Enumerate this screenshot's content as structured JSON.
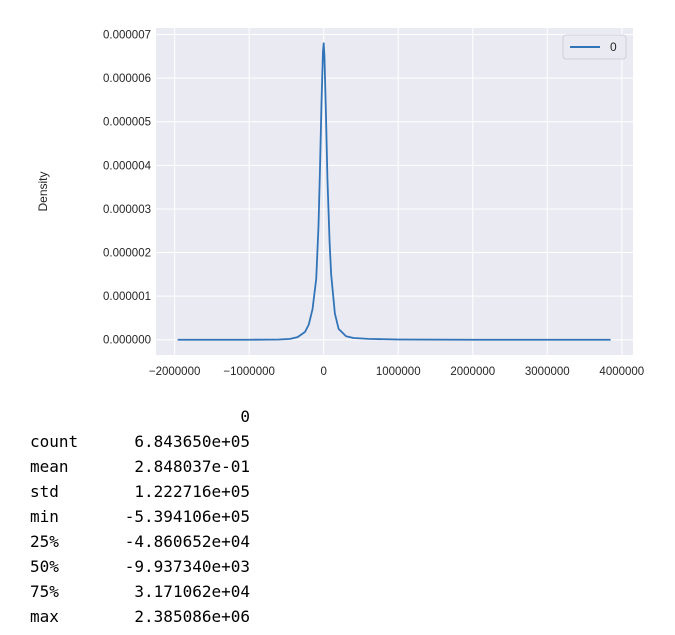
{
  "chart_data": {
    "type": "line",
    "title": "",
    "xlabel": "",
    "ylabel": "Density",
    "xlim": [
      -2250000,
      4150000
    ],
    "ylim": [
      -3.5e-07,
      7.15e-06
    ],
    "x_ticks": [
      -2000000,
      -1000000,
      0,
      1000000,
      2000000,
      3000000,
      4000000
    ],
    "x_tick_labels": [
      "−2000000",
      "−1000000",
      "0",
      "1000000",
      "2000000",
      "3000000",
      "4000000"
    ],
    "y_ticks": [
      0,
      1e-06,
      2e-06,
      3e-06,
      4e-06,
      5e-06,
      6e-06,
      7e-06
    ],
    "y_tick_labels": [
      "0.000000",
      "0.000001",
      "0.000002",
      "0.000003",
      "0.000004",
      "0.000005",
      "0.000006",
      "0.000007"
    ],
    "grid": true,
    "legend_position": "top-right",
    "series": [
      {
        "name": "0",
        "color": "#3274b8",
        "x": [
          -1960000,
          -1000000,
          -600000,
          -450000,
          -350000,
          -250000,
          -200000,
          -150000,
          -100000,
          -70000,
          -50000,
          -30000,
          -10000,
          0,
          10000,
          30000,
          50000,
          80000,
          100000,
          150000,
          200000,
          300000,
          400000,
          600000,
          1000000,
          2000000,
          3000000,
          3850000
        ],
        "y": [
          0,
          0,
          5e-09,
          2e-08,
          6e-08,
          1.8e-07,
          3.5e-07,
          7e-07,
          1.4e-06,
          2.6e-06,
          3.9e-06,
          5.4e-06,
          6.6e-06,
          6.8e-06,
          6.5e-06,
          5.2e-06,
          3.7e-06,
          2.2e-06,
          1.5e-06,
          6e-07,
          2.5e-07,
          8e-08,
          4e-08,
          2e-08,
          5e-09,
          0,
          0,
          0
        ]
      }
    ]
  },
  "describe_table": {
    "column_header": "0",
    "rows": [
      {
        "label": "count",
        "value": "6.843650e+05"
      },
      {
        "label": "mean",
        "value": "2.848037e-01"
      },
      {
        "label": "std",
        "value": "1.222716e+05"
      },
      {
        "label": "min",
        "value": "-5.394106e+05"
      },
      {
        "label": "25%",
        "value": "-4.860652e+04"
      },
      {
        "label": "50%",
        "value": "-9.937340e+03"
      },
      {
        "label": "75%",
        "value": "3.171062e+04"
      },
      {
        "label": "max",
        "value": "2.385086e+06"
      }
    ]
  }
}
